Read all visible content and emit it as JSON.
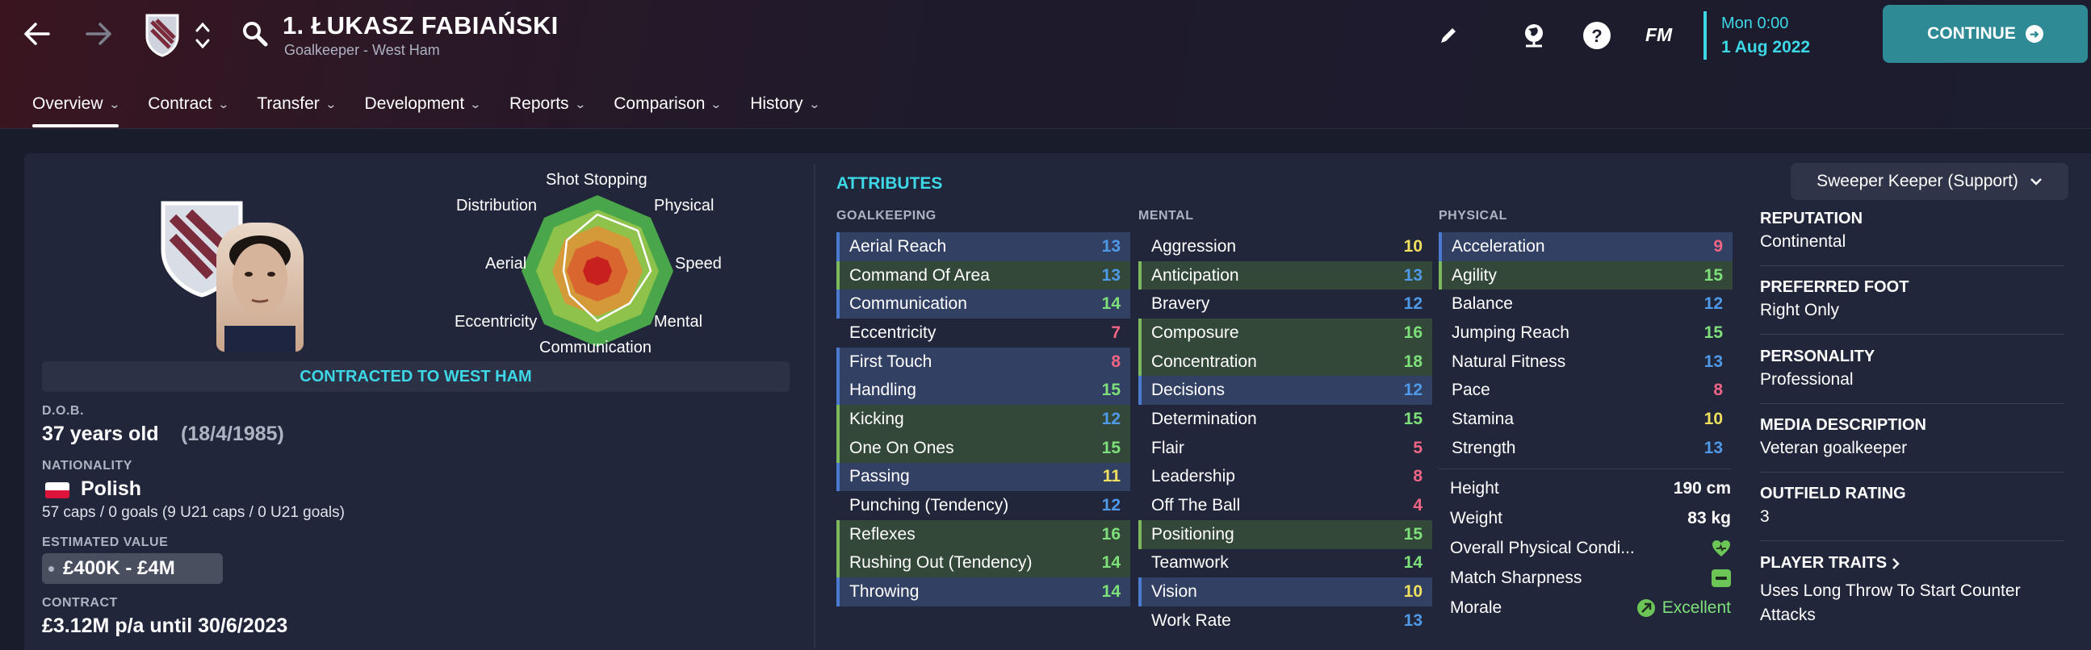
{
  "header": {
    "title": "1. ŁUKASZ FABIAŃSKI",
    "subtitle": "Goalkeeper - West Ham",
    "date_line1": "Mon 0:00",
    "date_line2": "1 Aug 2022",
    "continue_label": "CONTINUE",
    "fm_label": "FM"
  },
  "tabs": [
    "Overview",
    "Contract",
    "Transfer",
    "Development",
    "Reports",
    "Comparison",
    "History"
  ],
  "radar": {
    "labels": [
      "Shot Stopping",
      "Physical",
      "Speed",
      "Mental",
      "Communication",
      "Eccentricity",
      "Aerial",
      "Distribution"
    ]
  },
  "profile": {
    "contracted": "CONTRACTED TO WEST HAM",
    "dob_label": "D.O.B.",
    "age": "37 years old",
    "dob": "(18/4/1985)",
    "nationality_label": "NATIONALITY",
    "nationality": "Polish",
    "caps": "57 caps / 0 goals (9 U21 caps / 0 U21 goals)",
    "value_label": "ESTIMATED VALUE",
    "value": "£400K - £4M",
    "contract_label": "CONTRACT",
    "contract": "£3.12M p/a until 30/6/2023"
  },
  "attributes": {
    "title": "ATTRIBUTES",
    "role": "Sweeper Keeper (Support)",
    "goalkeeping_label": "GOALKEEPING",
    "mental_label": "MENTAL",
    "physical_label": "PHYSICAL",
    "goalkeeping": [
      {
        "name": "Aerial Reach",
        "value": "13",
        "key": "blue",
        "color": "blue"
      },
      {
        "name": "Command Of Area",
        "value": "13",
        "key": "green",
        "color": "blue"
      },
      {
        "name": "Communication",
        "value": "14",
        "key": "blue",
        "color": "green"
      },
      {
        "name": "Eccentricity",
        "value": "7",
        "key": "none",
        "color": "red"
      },
      {
        "name": "First Touch",
        "value": "8",
        "key": "blue",
        "color": "red"
      },
      {
        "name": "Handling",
        "value": "15",
        "key": "blue",
        "color": "green"
      },
      {
        "name": "Kicking",
        "value": "12",
        "key": "green",
        "color": "blue"
      },
      {
        "name": "One On Ones",
        "value": "15",
        "key": "green",
        "color": "green"
      },
      {
        "name": "Passing",
        "value": "11",
        "key": "blue",
        "color": "yellow"
      },
      {
        "name": "Punching (Tendency)",
        "value": "12",
        "key": "none",
        "color": "blue"
      },
      {
        "name": "Reflexes",
        "value": "16",
        "key": "green",
        "color": "green"
      },
      {
        "name": "Rushing Out (Tendency)",
        "value": "14",
        "key": "green",
        "color": "green"
      },
      {
        "name": "Throwing",
        "value": "14",
        "key": "blue",
        "color": "green"
      }
    ],
    "mental": [
      {
        "name": "Aggression",
        "value": "10",
        "key": "none",
        "color": "yellow"
      },
      {
        "name": "Anticipation",
        "value": "13",
        "key": "green",
        "color": "blue"
      },
      {
        "name": "Bravery",
        "value": "12",
        "key": "none",
        "color": "blue"
      },
      {
        "name": "Composure",
        "value": "16",
        "key": "green",
        "color": "green"
      },
      {
        "name": "Concentration",
        "value": "18",
        "key": "green",
        "color": "green"
      },
      {
        "name": "Decisions",
        "value": "12",
        "key": "blue",
        "color": "blue"
      },
      {
        "name": "Determination",
        "value": "15",
        "key": "none",
        "color": "green"
      },
      {
        "name": "Flair",
        "value": "5",
        "key": "none",
        "color": "red"
      },
      {
        "name": "Leadership",
        "value": "8",
        "key": "none",
        "color": "red"
      },
      {
        "name": "Off The Ball",
        "value": "4",
        "key": "none",
        "color": "red"
      },
      {
        "name": "Positioning",
        "value": "15",
        "key": "green",
        "color": "green"
      },
      {
        "name": "Teamwork",
        "value": "14",
        "key": "none",
        "color": "green"
      },
      {
        "name": "Vision",
        "value": "10",
        "key": "blue",
        "color": "yellow"
      },
      {
        "name": "Work Rate",
        "value": "13",
        "key": "none",
        "color": "blue"
      }
    ],
    "physical": [
      {
        "name": "Acceleration",
        "value": "9",
        "key": "blue",
        "color": "red"
      },
      {
        "name": "Agility",
        "value": "15",
        "key": "green",
        "color": "green"
      },
      {
        "name": "Balance",
        "value": "12",
        "key": "none",
        "color": "blue"
      },
      {
        "name": "Jumping Reach",
        "value": "15",
        "key": "none",
        "color": "green"
      },
      {
        "name": "Natural Fitness",
        "value": "13",
        "key": "none",
        "color": "blue"
      },
      {
        "name": "Pace",
        "value": "8",
        "key": "none",
        "color": "red"
      },
      {
        "name": "Stamina",
        "value": "10",
        "key": "none",
        "color": "yellow"
      },
      {
        "name": "Strength",
        "value": "13",
        "key": "none",
        "color": "blue"
      }
    ],
    "body": {
      "height_label": "Height",
      "height": "190 cm",
      "weight_label": "Weight",
      "weight": "83 kg",
      "condition_label": "Overall Physical Condi...",
      "sharpness_label": "Match Sharpness",
      "morale_label": "Morale",
      "morale": "Excellent"
    }
  },
  "info": {
    "reputation_label": "REPUTATION",
    "reputation": "Continental",
    "foot_label": "PREFERRED FOOT",
    "foot": "Right Only",
    "personality_label": "PERSONALITY",
    "personality": "Professional",
    "media_label": "MEDIA DESCRIPTION",
    "media": "Veteran goalkeeper",
    "outfield_label": "OUTFIELD RATING",
    "outfield": "3",
    "traits_label": "PLAYER TRAITS",
    "traits": "Uses Long Throw To Start Counter Attacks"
  },
  "colors": {
    "accent": "#3dd7e6",
    "continue": "#2e8a95",
    "green": "#7ee07a",
    "blue": "#4f9ae8",
    "yellow": "#f0e060",
    "red": "#f06585"
  }
}
